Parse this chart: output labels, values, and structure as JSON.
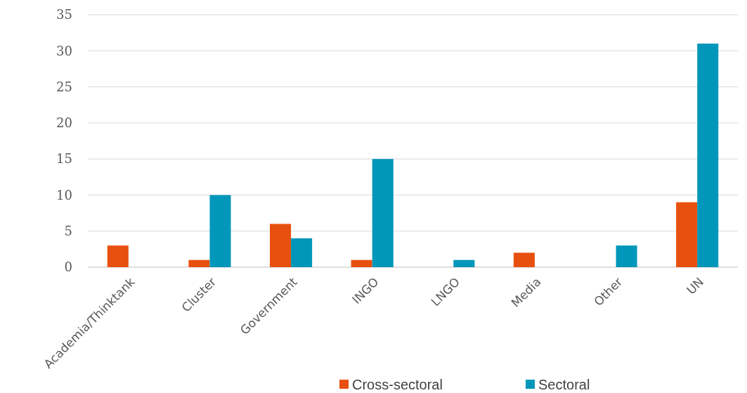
{
  "chart_data": {
    "type": "bar",
    "categories": [
      "Academia/Thinktank",
      "Cluster",
      "Government",
      "INGO",
      "LNGO",
      "Media",
      "Other",
      "UN"
    ],
    "series": [
      {
        "name": "Cross-sectoral",
        "color": "#e8500f",
        "values": [
          3,
          1,
          6,
          1,
          0,
          2,
          0,
          9
        ]
      },
      {
        "name": "Sectoral",
        "color": "#0097ba",
        "values": [
          0,
          10,
          4,
          15,
          1,
          0,
          3,
          31
        ]
      }
    ],
    "ylim": [
      0,
      35
    ],
    "yticks": [
      0,
      5,
      10,
      15,
      20,
      25,
      30,
      35
    ],
    "grid": "y",
    "legend": "bottom"
  }
}
